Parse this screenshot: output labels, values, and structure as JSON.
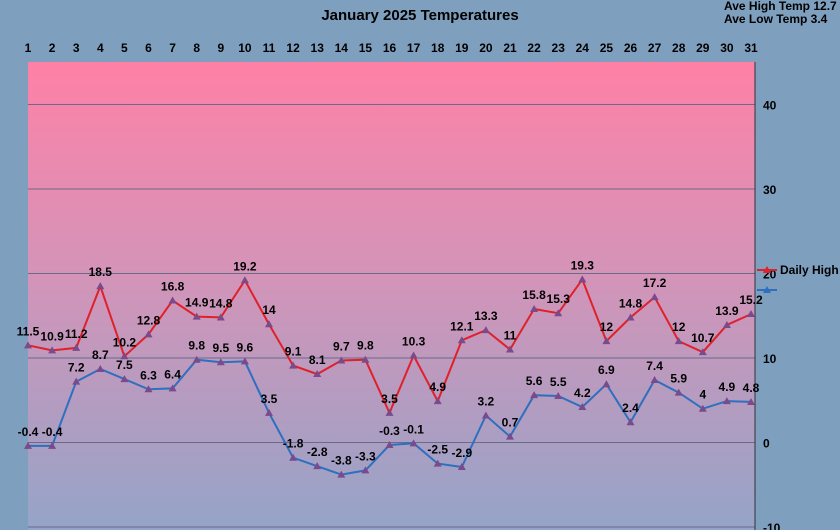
{
  "chart_data": {
    "type": "line",
    "title": "January 2025 Temperatures",
    "summary": [
      "Ave High Temp 12.7",
      "Ave Low Temp 3.4"
    ],
    "categories": [
      "1",
      "2",
      "3",
      "4",
      "5",
      "6",
      "7",
      "8",
      "9",
      "10",
      "11",
      "12",
      "13",
      "14",
      "15",
      "16",
      "17",
      "18",
      "19",
      "20",
      "21",
      "22",
      "23",
      "24",
      "25",
      "26",
      "27",
      "28",
      "29",
      "30",
      "31"
    ],
    "ylim": [
      -10,
      45
    ],
    "yticks": [
      "-10",
      "0",
      "10",
      "20",
      "30",
      "40"
    ],
    "yticks_values": [
      -10,
      0,
      10,
      20,
      30,
      40
    ],
    "grid": true,
    "legend_position": "right",
    "series": [
      {
        "name": "Daily High",
        "color": "#e0202a",
        "values": [
          11.5,
          10.9,
          11.2,
          18.5,
          10.2,
          12.8,
          16.8,
          14.9,
          14.8,
          19.2,
          14,
          9.1,
          8.1,
          9.7,
          9.8,
          3.5,
          10.3,
          4.9,
          12.1,
          13.3,
          11,
          15.8,
          15.3,
          19.3,
          12,
          14.8,
          17.2,
          12,
          10.7,
          13.9,
          15.2
        ],
        "labels": [
          "11.5",
          "10.9",
          "11.2",
          "18.5",
          "10.2",
          "12.8",
          "16.8",
          "14.9",
          "14.8",
          "19.2",
          "14",
          "9.1",
          "8.1",
          "9.7",
          "9.8",
          "3.5",
          "10.3",
          "4.9",
          "12.1",
          "13.3",
          "11",
          "15.8",
          "15.3",
          "19.3",
          "12",
          "14.8",
          "17.2",
          "12",
          "10.7",
          "13.9",
          "15.2"
        ]
      },
      {
        "name": "",
        "color": "#2f6fbf",
        "values": [
          -0.4,
          -0.4,
          7.2,
          8.7,
          7.5,
          6.3,
          6.4,
          9.8,
          9.5,
          9.6,
          3.5,
          -1.8,
          -2.8,
          -3.8,
          -3.3,
          -0.3,
          -0.1,
          -2.5,
          -2.9,
          3.2,
          0.7,
          5.6,
          5.5,
          4.2,
          6.9,
          2.4,
          7.4,
          5.9,
          4,
          4.9,
          4.8
        ],
        "labels": [
          "-0.4",
          "-0.4",
          "7.2",
          "8.7",
          "7.5",
          "6.3",
          "6.4",
          "9.8",
          "9.5",
          "9.6",
          "3.5",
          "-1.8",
          "-2.8",
          "-3.8",
          "-3.3",
          "-0.3",
          "-0.1",
          "-2.5",
          "-2.9",
          "3.2",
          "0.7",
          "5.6",
          "5.5",
          "4.2",
          "6.9",
          "2.4",
          "7.4",
          "5.9",
          "4",
          "4.9",
          "4.8"
        ]
      }
    ]
  }
}
